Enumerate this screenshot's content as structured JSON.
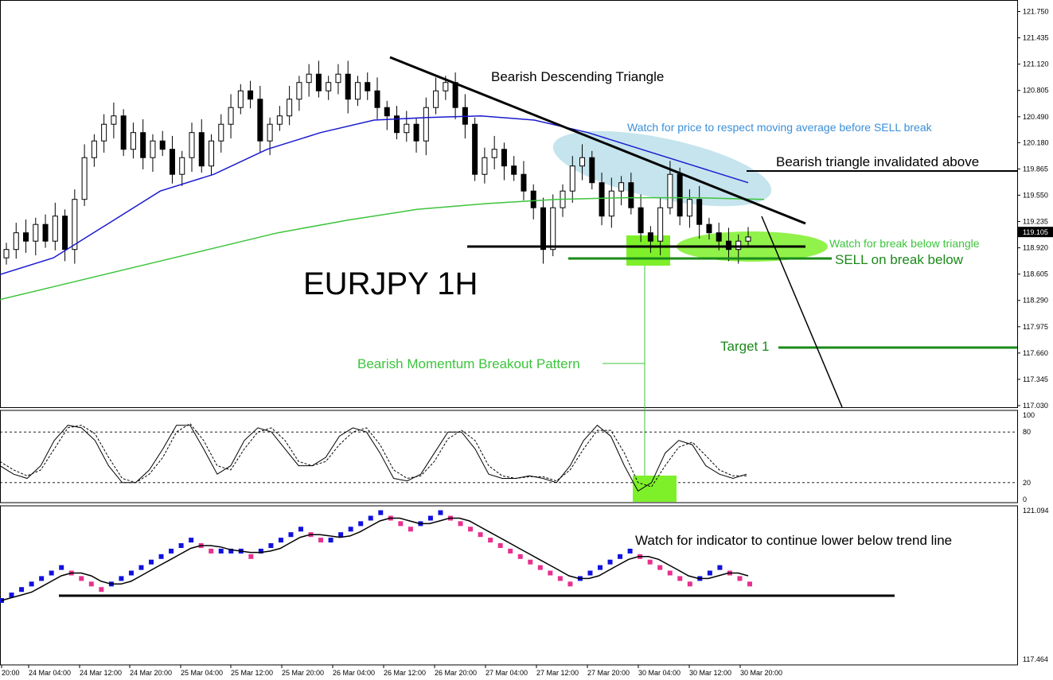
{
  "chart_data": [
    {
      "type": "candlestick",
      "title": "EURJPY 1H",
      "yaxis_ticks": [
        "121.750",
        "121.435",
        "121.120",
        "120.805",
        "120.490",
        "120.180",
        "119.865",
        "119.550",
        "119.235",
        "118.920",
        "118.605",
        "118.290",
        "117.975",
        "117.660",
        "117.345",
        "117.030"
      ],
      "ylim": [
        117.03,
        121.85
      ],
      "current_price": "119.105",
      "xaxis_ticks": [
        "20:00",
        "24 Mar 04:00",
        "24 Mar 12:00",
        "24 Mar 20:00",
        "25 Mar 04:00",
        "25 Mar 12:00",
        "25 Mar 20:00",
        "26 Mar 04:00",
        "26 Mar 12:00",
        "26 Mar 20:00",
        "27 Mar 04:00",
        "27 Mar 12:00",
        "27 Mar 20:00",
        "30 Mar 04:00",
        "30 Mar 12:00",
        "30 Mar 20:00"
      ],
      "close_path": [
        118.9,
        119.1,
        119.0,
        119.2,
        119.0,
        119.3,
        118.9,
        119.5,
        120.0,
        120.2,
        120.4,
        120.5,
        120.1,
        120.3,
        120.0,
        120.2,
        120.1,
        119.8,
        120.0,
        120.3,
        119.9,
        120.2,
        120.4,
        120.6,
        120.8,
        120.7,
        120.2,
        120.4,
        120.5,
        120.7,
        120.9,
        121.0,
        120.8,
        120.9,
        121.0,
        120.7,
        120.9,
        120.8,
        120.6,
        120.5,
        120.3,
        120.4,
        120.2,
        120.6,
        120.8,
        120.9,
        120.6,
        120.4,
        119.8,
        120.0,
        120.1,
        119.9,
        119.8,
        119.6,
        119.4,
        118.9,
        119.4,
        119.6,
        119.9,
        120.0,
        119.7,
        119.3,
        119.6,
        119.7,
        119.4,
        119.1,
        119.0,
        119.4,
        119.8,
        119.3,
        119.5,
        119.2,
        119.1,
        119.0,
        118.9,
        119.0,
        119.05
      ],
      "ma_blue_path": [
        118.6,
        118.8,
        119.2,
        119.6,
        119.8,
        120.1,
        120.3,
        120.45,
        120.48,
        120.5,
        120.45,
        120.3,
        120.1,
        119.9,
        119.7
      ],
      "ma_green_path": [
        118.3,
        118.5,
        118.7,
        118.9,
        119.1,
        119.25,
        119.38,
        119.45,
        119.5,
        119.52,
        119.52,
        119.5
      ]
    },
    {
      "type": "line",
      "name": "Stochastic",
      "yaxis_ticks": [
        "100",
        "80",
        "20",
        "0"
      ],
      "ylim": [
        0,
        100
      ],
      "levels": [
        80,
        20
      ],
      "main": [
        40,
        30,
        25,
        40,
        70,
        88,
        85,
        70,
        40,
        20,
        20,
        35,
        60,
        88,
        88,
        60,
        30,
        40,
        70,
        85,
        80,
        60,
        40,
        40,
        50,
        75,
        85,
        80,
        55,
        25,
        22,
        30,
        55,
        80,
        80,
        60,
        30,
        25,
        25,
        28,
        25,
        20,
        40,
        70,
        88,
        75,
        40,
        10,
        20,
        55,
        70,
        65,
        40,
        30,
        25,
        30
      ],
      "signal": [
        45,
        35,
        28,
        35,
        60,
        85,
        88,
        78,
        50,
        25,
        20,
        30,
        50,
        80,
        90,
        70,
        40,
        35,
        60,
        80,
        85,
        70,
        45,
        40,
        45,
        65,
        80,
        85,
        65,
        35,
        25,
        28,
        45,
        72,
        82,
        70,
        40,
        28,
        25,
        27,
        27,
        22,
        35,
        60,
        82,
        82,
        55,
        20,
        15,
        40,
        62,
        68,
        52,
        35,
        28,
        28
      ]
    },
    {
      "type": "line",
      "name": "Indicator",
      "yaxis_ticks": [
        "121.094",
        "117.464"
      ],
      "ylim": [
        117.464,
        121.094
      ],
      "blocks": [
        0,
        1,
        2,
        3,
        4,
        5,
        6,
        5,
        4,
        3,
        2,
        3,
        4,
        5,
        6,
        7,
        8,
        9,
        10,
        11,
        10,
        9,
        9,
        9,
        9,
        8,
        9,
        10,
        11,
        12,
        13,
        12,
        11,
        11,
        12,
        13,
        14,
        15,
        16,
        15,
        14,
        13,
        14,
        15,
        16,
        15,
        14,
        13,
        12,
        11,
        10,
        9,
        8,
        7,
        6,
        5,
        4,
        3,
        4,
        5,
        6,
        7,
        8,
        9,
        8,
        7,
        6,
        5,
        4,
        3,
        4,
        5,
        6,
        5,
        4,
        3
      ]
    }
  ],
  "annotations": {
    "chart_title": "EURJPY 1H",
    "triangle_title": "Bearish Descending Triangle",
    "ma_watch": "Watch for price to respect moving average before SELL break",
    "invalidated": "Bearish triangle invalidated above",
    "break_watch": "Watch for break below triangle",
    "sell": "SELL on break below",
    "target": "Target 1",
    "momentum": "Bearish Momentum Breakout Pattern",
    "indicator_watch": "Watch for indicator to continue lower below trend line"
  },
  "colors": {
    "bull_candle": "#ffffff",
    "bear_candle": "#000000",
    "ma_blue": "#1a1ad0",
    "ma_green": "#3cc43c",
    "ann_blue_text": "#3a8fd8",
    "ann_green_text": "#3cc43c",
    "ann_darkgreen": "#1a8a1a",
    "highlight_green": "#7ef02a",
    "highlight_lightblue": "#add8e6",
    "up_block": "#1010e0",
    "down_block": "#e8308f"
  }
}
